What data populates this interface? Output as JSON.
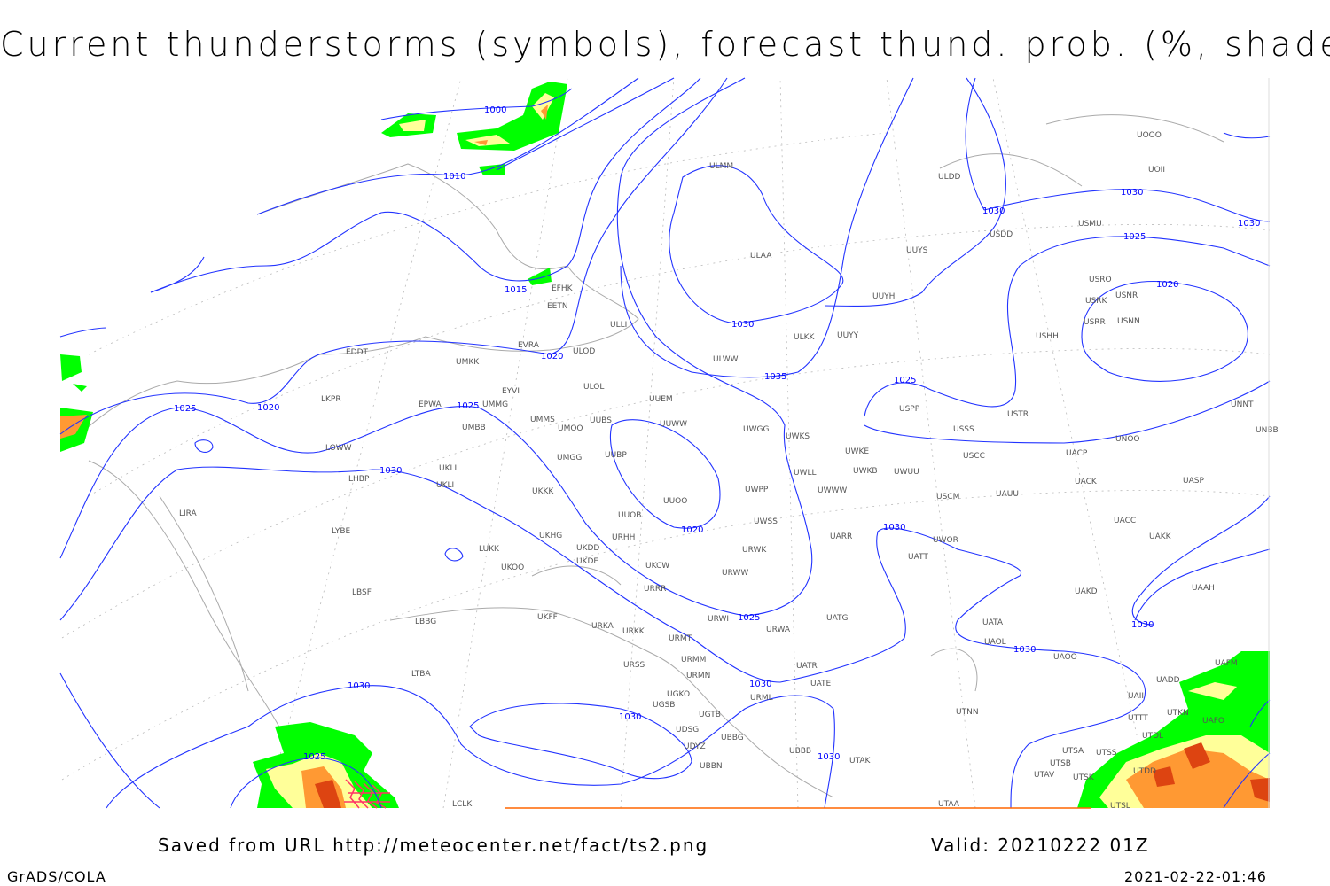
{
  "title": "Current thunderstorms (symbols), forecast thund. prob. (%, shaded)",
  "footer": {
    "source": "Saved from URL http://meteocenter.net/fact/ts2.png",
    "valid": "Valid: 20210222 01Z",
    "software": "GrADS/COLA",
    "timestamp": "2021-02-22-01:46"
  },
  "colors": {
    "isobar": "#2233ff",
    "coastline": "#aaaaaa",
    "prob_low": "#00ff00",
    "prob_mid": "#ffff99",
    "prob_high": "#ff9933",
    "prob_max": "#dd4411",
    "thunder_symbol": "#ff3366"
  },
  "isobar_labels": [
    "1000",
    "1010",
    "1015",
    "1020",
    "1020",
    "1025",
    "1025",
    "1030",
    "1030",
    "1035",
    "1030",
    "1030",
    "1025",
    "1020",
    "1025",
    "1020",
    "1030",
    "1030",
    "1025",
    "1030",
    "1030",
    "1030",
    "1030",
    "1025",
    "1030",
    "1030"
  ],
  "stations": [
    "ULMM",
    "ULDD",
    "UOOO",
    "UOII",
    "USDD",
    "USMU",
    "ULAA",
    "UUYS",
    "USRO",
    "USRK",
    "USNR",
    "USRR",
    "USNN",
    "UUYH",
    "USHH",
    "EFHK",
    "EETN",
    "ULLI",
    "ULKK",
    "UUYY",
    "EVRA",
    "ULOD",
    "EDDT",
    "ULWW",
    "UMKK",
    "EYVI",
    "ULOL",
    "UUEM",
    "LKPR",
    "EPWA",
    "UMMG",
    "USPP",
    "USTR",
    "UMMS",
    "UMOO",
    "UUBS",
    "UUWW",
    "UWGG",
    "UWKS",
    "USSS",
    "UNOO",
    "UNNT",
    "UNBB",
    "UMBB",
    "LOWW",
    "UWKE",
    "UWKB",
    "UWUU",
    "USCC",
    "UACP",
    "UKLL",
    "UUBP",
    "UMGG",
    "LHBP",
    "UKLI",
    "UWLL",
    "UACK",
    "UASP",
    "UWWW",
    "UWPP",
    "UKKK",
    "USCM",
    "UAUU",
    "UUOO",
    "UUOB",
    "LIRA",
    "UWSS",
    "UACC",
    "LYBE",
    "UARR",
    "UWOR",
    "UAKK",
    "UKHG",
    "UKDD",
    "URHH",
    "LUKK",
    "UATT",
    "UKDE",
    "UKOO",
    "URWK",
    "UKCW",
    "URWW",
    "LBSF",
    "URRR",
    "UAKD",
    "UAAH",
    "UKFF",
    "URWI",
    "LBBG",
    "UATG",
    "URKA",
    "URKK",
    "UATA",
    "URWA",
    "URMT",
    "UAOL",
    "UAOO",
    "URMM",
    "URSS",
    "UATR",
    "LTBA",
    "URMN",
    "UATE",
    "UADD",
    "UAFM",
    "URML",
    "UGKO",
    "UAII",
    "UGSB",
    "UGTB",
    "UTNN",
    "UTTT",
    "UTKN",
    "UAFO",
    "UDSG",
    "UBBG",
    "UTDL",
    "UBBB",
    "UDYZ",
    "UTSA",
    "UTSS",
    "UTSB",
    "UTAK",
    "UBBN",
    "UTAV",
    "UTSK",
    "UTDD",
    "LCLK",
    "UTAA",
    "UTSL"
  ]
}
